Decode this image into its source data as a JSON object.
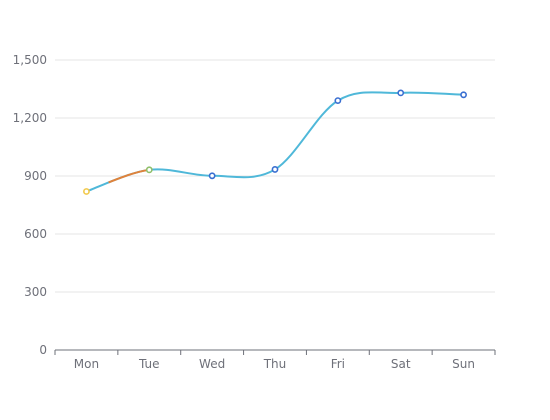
{
  "chart_data": {
    "type": "line",
    "title": "",
    "xlabel": "",
    "ylabel": "",
    "categories": [
      "Mon",
      "Tue",
      "Wed",
      "Thu",
      "Fri",
      "Sat",
      "Sun"
    ],
    "y_ticks": [
      "0",
      "300",
      "600",
      "900",
      "1,200",
      "1,500"
    ],
    "ylim": [
      0,
      1500
    ],
    "grid": true,
    "legend": "none",
    "series": [
      {
        "values": [
          820,
          932,
          901,
          934,
          1290,
          1330,
          1320
        ]
      }
    ],
    "colors": {
      "line": "#4fb8d9",
      "highlight_segment": "#e0823a",
      "point_stroke": "#3a6fd1",
      "point_fill": "#ffffff",
      "first_point_stroke": "#f2c94c",
      "second_point_stroke": "#8fbf6b",
      "grid": "#e6e6e6",
      "axis": "#6e7079",
      "tick_text": "#6e7079"
    }
  }
}
